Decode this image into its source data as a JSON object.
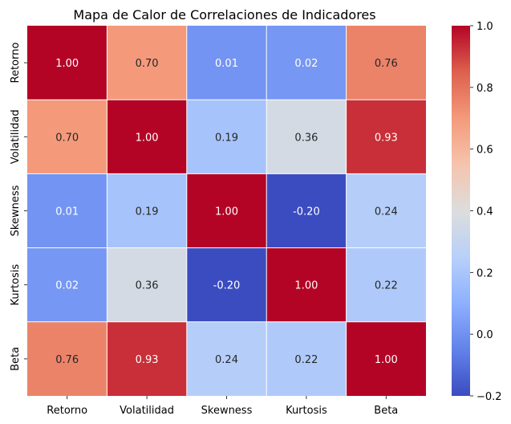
{
  "chart_data": {
    "type": "heatmap",
    "title": "Mapa de Calor de Correlaciones de Indicadores",
    "xlabel": "",
    "ylabel": "",
    "x_categories": [
      "Retorno",
      "Volatilidad",
      "Skewness",
      "Kurtosis",
      "Beta"
    ],
    "y_categories": [
      "Retorno",
      "Volatilidad",
      "Skewness",
      "Kurtosis",
      "Beta"
    ],
    "values": [
      [
        1.0,
        0.7,
        0.01,
        0.02,
        0.76
      ],
      [
        0.7,
        1.0,
        0.19,
        0.36,
        0.93
      ],
      [
        0.01,
        0.19,
        1.0,
        -0.2,
        0.24
      ],
      [
        0.02,
        0.36,
        -0.2,
        1.0,
        0.22
      ],
      [
        0.76,
        0.93,
        0.24,
        0.22,
        1.0
      ]
    ],
    "annotations_format": "0.00",
    "colormap": "coolwarm",
    "vmin": -0.2,
    "vmax": 1.0,
    "colorbar": {
      "ticks": [
        -0.2,
        0.0,
        0.2,
        0.4,
        0.6,
        0.8,
        1.0
      ],
      "tick_labels": [
        "−0.2",
        "0.0",
        "0.2",
        "0.4",
        "0.6",
        "0.8",
        "1.0"
      ]
    },
    "grid_line_color": "#ffffff"
  }
}
